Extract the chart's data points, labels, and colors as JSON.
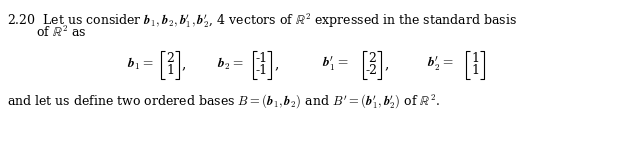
{
  "background_color": "#ffffff",
  "text_color": "#000000",
  "figsize": [
    6.34,
    1.54
  ],
  "dpi": 100
}
